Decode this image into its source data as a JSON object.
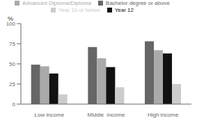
{
  "chart_data": {
    "type": "bar",
    "ylabel": "%",
    "categories": [
      "Low income",
      "Middle  income",
      "High income"
    ],
    "series": [
      {
        "name": "Bachelor degree or above",
        "color": "#666666",
        "values": [
          49,
          71,
          78
        ]
      },
      {
        "name": "Advanced Diploma/Diploma",
        "color": "#aaaaaa",
        "values": [
          47,
          57,
          67
        ]
      },
      {
        "name": "Year 12",
        "color": "#111111",
        "values": [
          38,
          46,
          63
        ]
      },
      {
        "name": "Year 10 or below",
        "color": "#cccccc",
        "values": [
          12,
          21,
          25
        ]
      }
    ],
    "ylim": [
      0,
      100
    ],
    "yticks": [
      0,
      25,
      50,
      75,
      100
    ],
    "grid": false,
    "legend": "top"
  }
}
